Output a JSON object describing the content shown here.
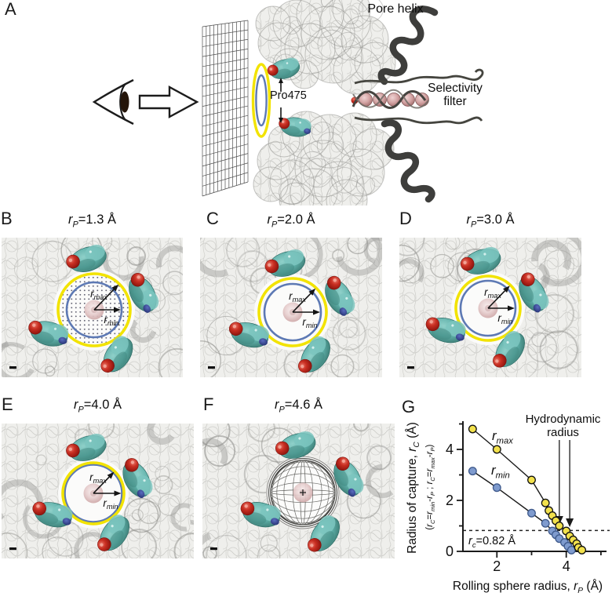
{
  "panel_a": {
    "letter": "A",
    "pore_helix_label": "Pore helix",
    "selectivity_filter_label_line1": "Selectivity",
    "selectivity_filter_label_line2": "filter",
    "pro_label": "Pro475"
  },
  "pore_panels": [
    {
      "letter": "B",
      "title": "*r*_P_=1.3 Å",
      "r_max_label": "*r*_max_",
      "r_min_label": "*r*_min_"
    },
    {
      "letter": "C",
      "title": "*r*_P_=2.0 Å",
      "r_max_label": "*r*_max_",
      "r_min_label": "*r*_min_"
    },
    {
      "letter": "D",
      "title": "*r*_P_=3.0 Å",
      "r_max_label": "*r*_max_",
      "r_min_label": "*r*_min_"
    },
    {
      "letter": "E",
      "title": "*r*_P_=4.0 Å",
      "r_max_label": "*r*_max_",
      "r_min_label": "*r*_min_"
    },
    {
      "letter": "F",
      "title": "*r*_P_=4.6 Å"
    }
  ],
  "panel_g": {
    "letter": "G",
    "ylabel_main": "Radius of capture, *r*_C_ (Å)",
    "ylabel_sub": "(*r*_C_=*r*_min_-*r*_P_ ; *r*_C_=*r*_max_-*r*_P_)",
    "xlabel": "Rolling sphere radius, *r*_P_ (Å)",
    "hydrodynamic_label_line1": "Hydrodynamic",
    "hydrodynamic_label_line2": "radius",
    "rc_annotation": "*r*_c_=0.82 Å",
    "legend": [
      "*r*_max_",
      "*r*_min_"
    ]
  },
  "chart_data": {
    "type": "scatter",
    "title": "",
    "xlabel": "Rolling sphere radius, r_P (Å)",
    "ylabel": "Radius of capture, r_C (Å)",
    "xlim": [
      1.0,
      5.15
    ],
    "ylim": [
      0,
      5.1
    ],
    "x_ticks_labeled": [
      2,
      4
    ],
    "x_ticks_minor": [
      3,
      5
    ],
    "y_ticks_labeled": [
      0,
      2,
      4
    ],
    "y_ticks_minor": [
      1,
      3,
      5
    ],
    "grid": false,
    "legend_position": "inline",
    "dashed_line_y": 0.82,
    "hydrodynamic_arrow_x": [
      3.8,
      4.1
    ],
    "series": [
      {
        "name": "r_max",
        "marker_color": "#f2e14c",
        "x": [
          1.3,
          2.0,
          3.0,
          3.4,
          3.5,
          3.6,
          3.7,
          3.8,
          4.0,
          4.1,
          4.2,
          4.3,
          4.35,
          4.45
        ],
        "y": [
          4.8,
          4.0,
          2.8,
          1.9,
          1.6,
          1.4,
          1.2,
          1.0,
          0.8,
          0.6,
          0.45,
          0.3,
          0.15,
          0.05
        ]
      },
      {
        "name": "r_min",
        "marker_color": "#7f9bce",
        "x": [
          1.3,
          2.0,
          3.0,
          3.4,
          3.6,
          3.7,
          3.8,
          3.95,
          4.05,
          4.15
        ],
        "y": [
          3.15,
          2.5,
          1.5,
          1.1,
          0.8,
          0.65,
          0.5,
          0.35,
          0.2,
          0.05
        ]
      }
    ]
  },
  "colors": {
    "yellow_circle": "#f2e300",
    "blue_circle": "#5d79b4",
    "teal_residue": "#5fb0a9",
    "red_atom": "#c12720",
    "navy_atom": "#2e3f8e",
    "pink_ion": "#dfc0c0",
    "marker_max": "#f2e14c",
    "marker_min": "#7f9bce"
  }
}
